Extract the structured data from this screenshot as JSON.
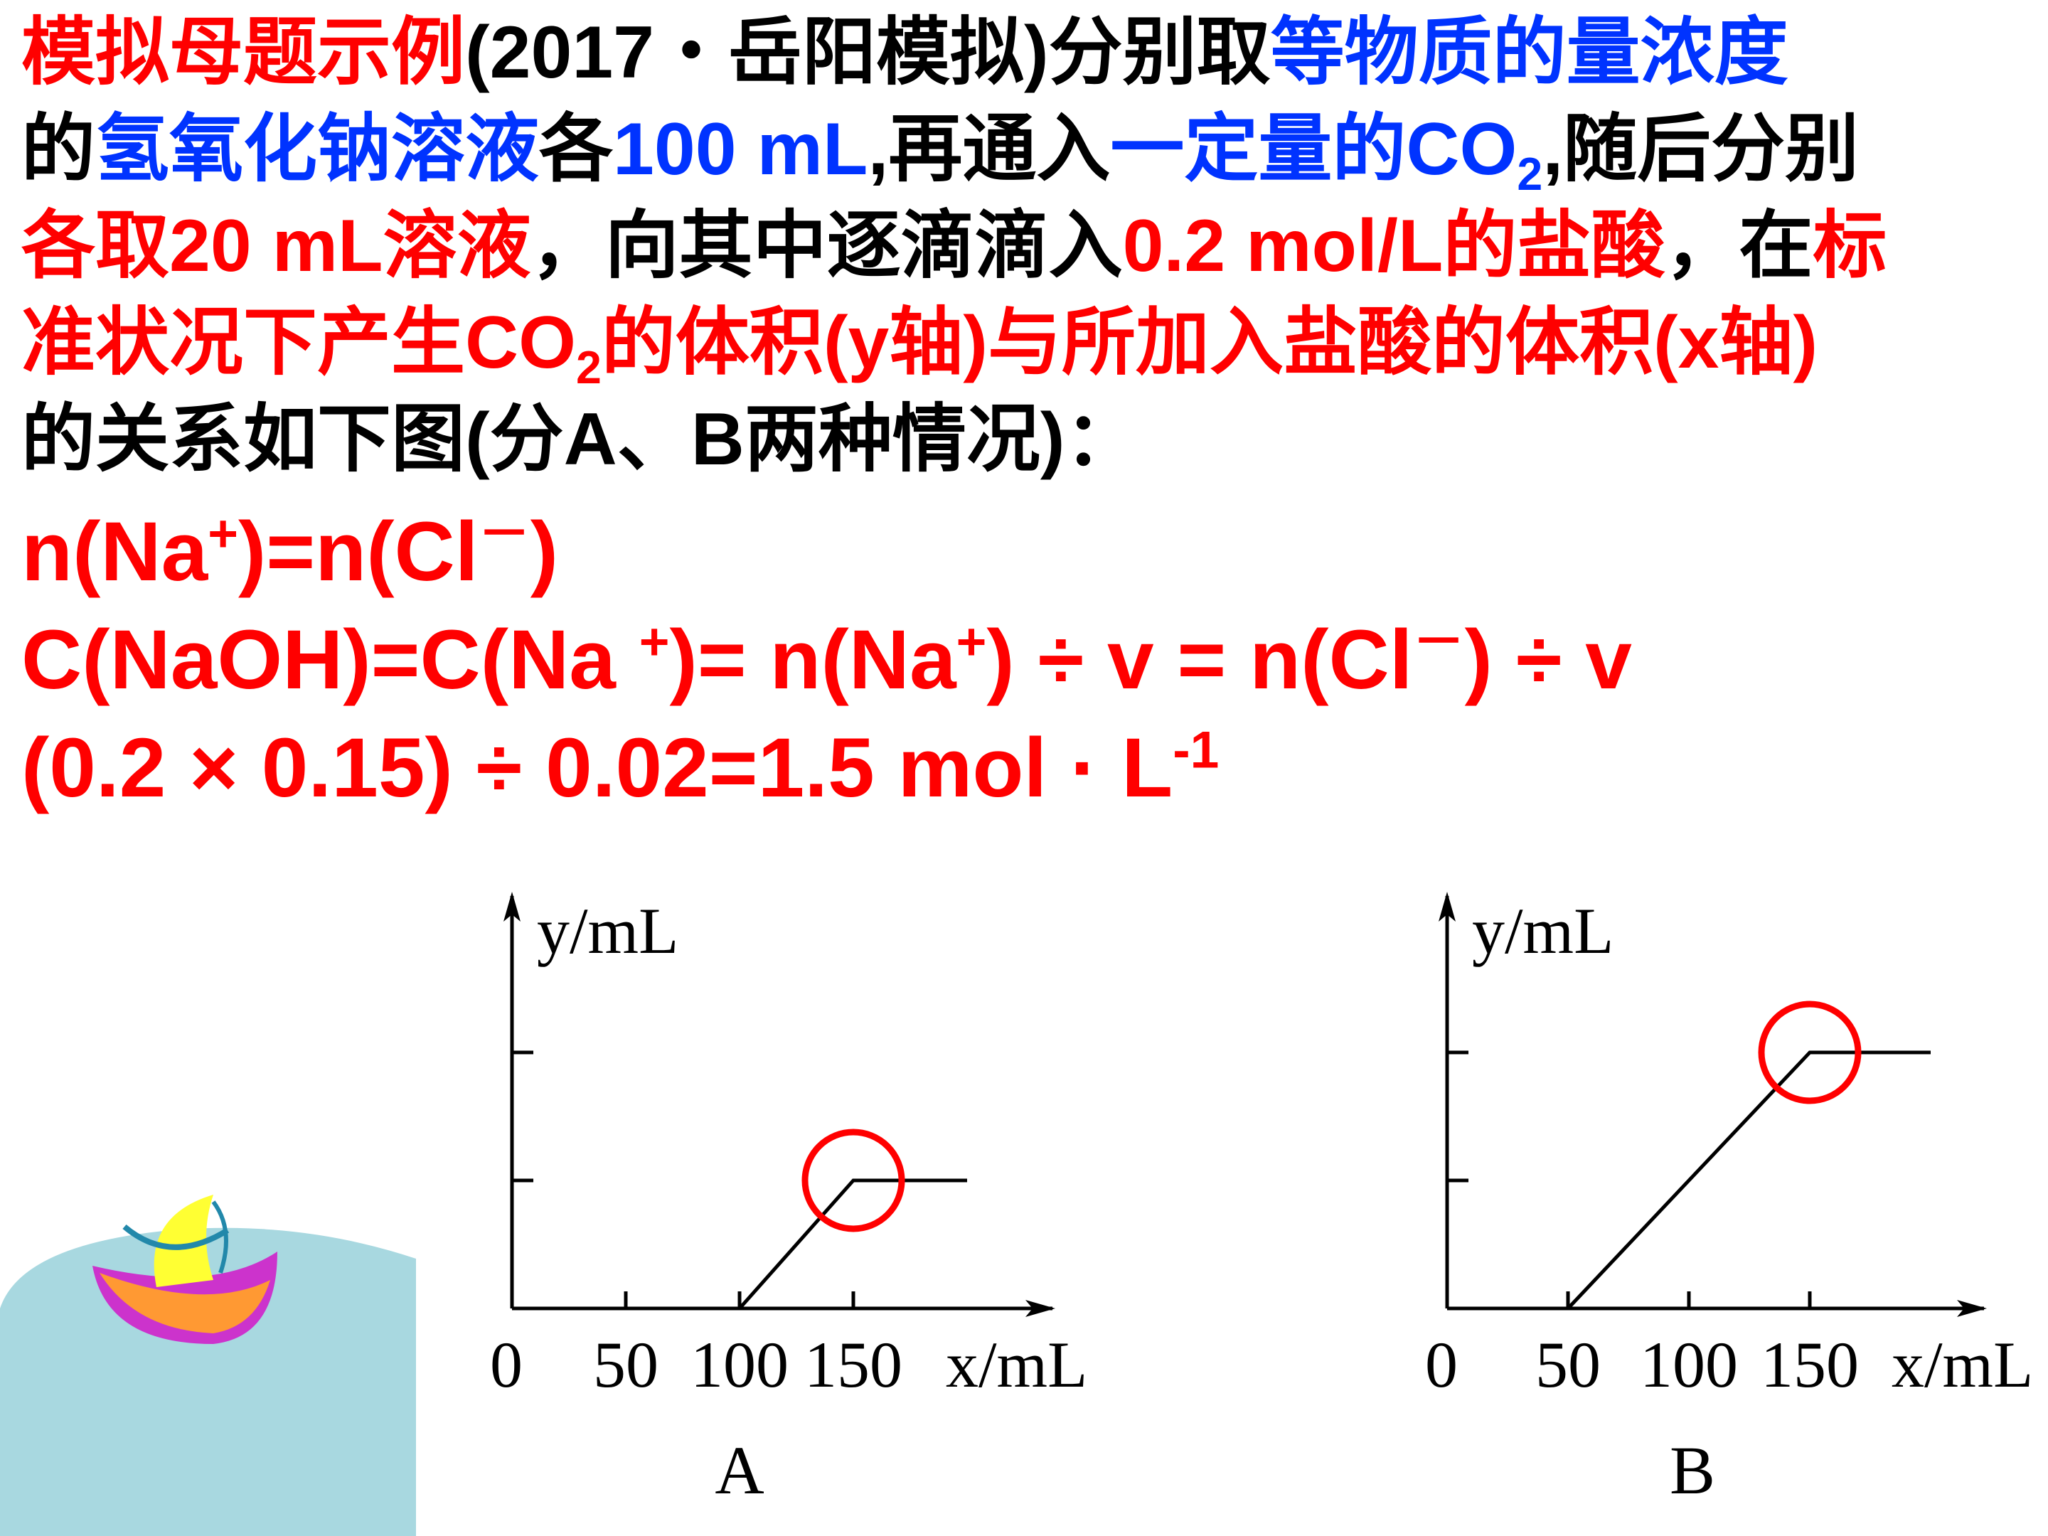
{
  "problem": {
    "l1": {
      "a": "模拟母题示例",
      "b": "(2017・岳阳模拟)分别取",
      "c": "等物质的量浓度"
    },
    "l2": {
      "a": "的",
      "b": "氢氧化钠溶液",
      "c": "各",
      "d": "100 mL",
      "e": ",再通入",
      "f": "一定量的CO",
      "sub": "2",
      "g": ",随后分别"
    },
    "l3": {
      "a": "各取20 mL溶液",
      "b": "，向其中逐滴滴入",
      "c": "0.2 mol/L的盐酸",
      "d": "，在",
      "e": "标"
    },
    "l4": {
      "a": "准状况下产生CO",
      "sub": "2",
      "b": "的体积(y轴)与所加入盐酸的体积(x轴)"
    },
    "l5": {
      "a": "的关系如下图(分A、B两种情况)："
    }
  },
  "formula": {
    "f1": {
      "a": "n(Na",
      "sup1": "+",
      "b": ")=n(Cl",
      "sup2": "－",
      "c": ")"
    },
    "f2": {
      "a": "C(NaOH)=C(Na ",
      "sup1": "+",
      "b": ")= n(Na",
      "sup2": "+",
      "c": ") ÷ v = n(Cl",
      "sup3": "－",
      "d": ") ÷ v"
    },
    "f3": {
      "a": "(0.2 × 0.15) ÷ 0.02=1.5 mol · L",
      "sup": "-1"
    }
  },
  "chart_data": [
    {
      "type": "line",
      "caption": "A",
      "xlabel": "x/mL",
      "ylabel": "y/mL",
      "origin_label": "0",
      "xticks": [
        50,
        100,
        150
      ],
      "xlim": [
        0,
        200
      ],
      "ylim": [
        0,
        3
      ],
      "yticks": [
        1,
        2
      ],
      "points": [
        [
          100,
          0
        ],
        [
          150,
          1
        ],
        [
          200,
          1
        ]
      ],
      "highlight": {
        "x": 150,
        "y": 1,
        "color": "#ff0000"
      }
    },
    {
      "type": "line",
      "caption": "B",
      "xlabel": "x/mL",
      "ylabel": "y/mL",
      "origin_label": "0",
      "xticks": [
        50,
        100,
        150
      ],
      "xlim": [
        0,
        200
      ],
      "ylim": [
        0,
        3
      ],
      "yticks": [
        1,
        2
      ],
      "points": [
        [
          50,
          0
        ],
        [
          150,
          2
        ],
        [
          200,
          2
        ]
      ],
      "highlight": {
        "x": 150,
        "y": 2,
        "color": "#ff0000"
      }
    }
  ]
}
